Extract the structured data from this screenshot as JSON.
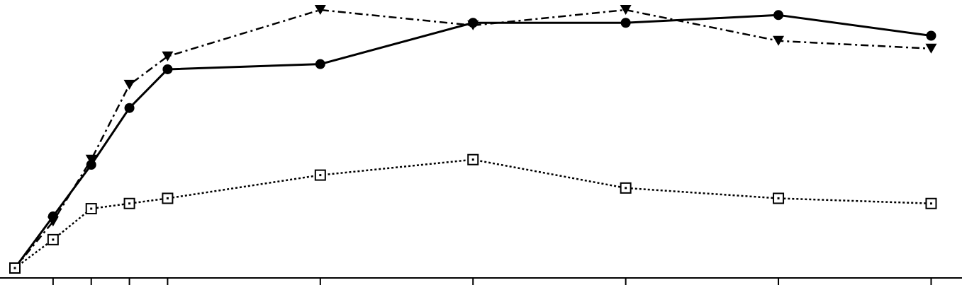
{
  "chart_data": {
    "type": "line",
    "title": "",
    "xlabel": "",
    "ylabel": "",
    "x": [
      0,
      1,
      2,
      3,
      4,
      8,
      12,
      16,
      20,
      24
    ],
    "xlim": [
      0,
      24.4
    ],
    "ylim": [
      0,
      1.0
    ],
    "grid": false,
    "legend": "none",
    "series": [
      {
        "style": "solid",
        "marker": "circle",
        "color": "#000000",
        "values": [
          0,
          0.2,
          0.4,
          0.62,
          0.77,
          0.79,
          0.95,
          0.95,
          0.98,
          0.9
        ]
      },
      {
        "style": "dashdot",
        "marker": "triangle-down",
        "color": "#000000",
        "values": [
          0,
          0.18,
          0.42,
          0.71,
          0.82,
          1.0,
          0.94,
          1.0,
          0.88,
          0.85
        ]
      },
      {
        "style": "dotted",
        "marker": "square-open",
        "color": "#000000",
        "values": [
          0,
          0.11,
          0.23,
          0.25,
          0.27,
          0.36,
          0.42,
          0.31,
          0.27,
          0.25
        ]
      }
    ]
  }
}
